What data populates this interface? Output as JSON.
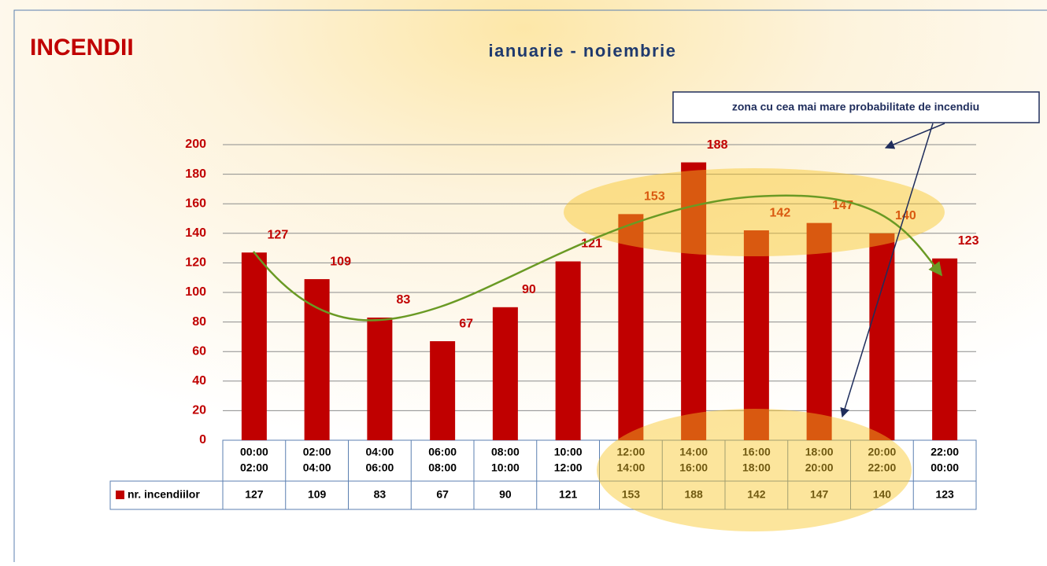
{
  "chart_data": {
    "type": "bar",
    "title": "INCENDII",
    "subtitle": "ianuarie - noiembrie",
    "annotation": "zona cu cea mai mare probabilitate de incendiu",
    "categories": [
      [
        "00:00",
        "02:00"
      ],
      [
        "02:00",
        "04:00"
      ],
      [
        "04:00",
        "06:00"
      ],
      [
        "06:00",
        "08:00"
      ],
      [
        "08:00",
        "10:00"
      ],
      [
        "10:00",
        "12:00"
      ],
      [
        "12:00",
        "14:00"
      ],
      [
        "14:00",
        "16:00"
      ],
      [
        "16:00",
        "18:00"
      ],
      [
        "18:00",
        "20:00"
      ],
      [
        "20:00",
        "22:00"
      ],
      [
        "22:00",
        "00:00"
      ]
    ],
    "series": [
      {
        "name": "nr. incendiilor",
        "color": "#c00000",
        "values": [
          127,
          109,
          83,
          67,
          90,
          121,
          153,
          188,
          142,
          147,
          140,
          123
        ]
      }
    ],
    "ylim": [
      0,
      200
    ],
    "yticks": [
      0,
      20,
      40,
      60,
      80,
      100,
      120,
      140,
      160,
      180,
      200
    ],
    "grid": true
  }
}
